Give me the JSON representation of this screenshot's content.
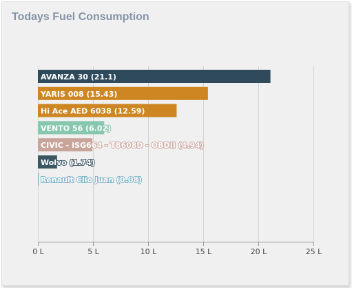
{
  "chart_data": {
    "type": "bar",
    "orientation": "horizontal",
    "title": "Todays Fuel Consumption",
    "unit": "L",
    "xlim": [
      0,
      25
    ],
    "ticks": [
      0,
      5,
      10,
      15,
      20,
      25
    ],
    "tick_labels": [
      "0 L",
      "5 L",
      "10 L",
      "15 L",
      "20 L",
      "25 L"
    ],
    "grid": true,
    "bars": [
      {
        "label": "AVANZA 30 (21.1)",
        "value": 21.1,
        "color": "#2e4a5b"
      },
      {
        "label": "YARIS 008 (15.43)",
        "value": 15.43,
        "color": "#cd8621"
      },
      {
        "label": "Hi Ace AED 6038 (12.59)",
        "value": 12.59,
        "color": "#cd8621"
      },
      {
        "label": "VENTO 56 (6.02)",
        "value": 6.02,
        "color": "#86c7ae"
      },
      {
        "label": "CIVIC - ISG664 - T8608D - OBDII (4.94)",
        "value": 4.94,
        "color": "#c9a49a"
      },
      {
        "label": "Wolvo (1.74)",
        "value": 1.74,
        "color": "#3c5664"
      },
      {
        "label": "Renault Clio Juan (0.08)",
        "value": 0.08,
        "color": "#7fb3c9"
      }
    ]
  }
}
